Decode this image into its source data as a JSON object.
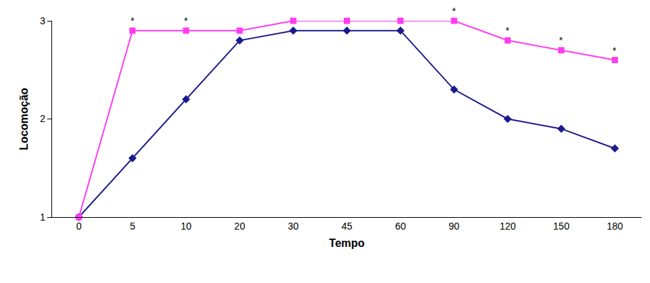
{
  "chart_data": {
    "type": "line",
    "x_label": "Tempo",
    "y_label": "Locomoção",
    "categories": [
      "0",
      "5",
      "10",
      "20",
      "30",
      "45",
      "60",
      "90",
      "120",
      "150",
      "180"
    ],
    "series": [
      {
        "color": "#1a1a8c",
        "marker": "diamond",
        "values": [
          1,
          1.6,
          2.2,
          2.8,
          2.9,
          2.9,
          2.9,
          2.3,
          2.0,
          1.9,
          1.7
        ]
      },
      {
        "color": "#ff3cf0",
        "marker": "square",
        "values": [
          1,
          2.9,
          2.9,
          2.9,
          3.0,
          3.0,
          3.0,
          3.0,
          2.8,
          2.7,
          2.6
        ]
      }
    ],
    "ylim": [
      1,
      3
    ],
    "yticks": [
      1,
      2,
      3
    ],
    "grid": false,
    "annotations": [
      {
        "x": "5",
        "text": "*"
      },
      {
        "x": "10",
        "text": "*"
      },
      {
        "x": "90",
        "text": "*"
      },
      {
        "x": "120",
        "text": "*"
      },
      {
        "x": "150",
        "text": "*"
      },
      {
        "x": "180",
        "text": "*"
      }
    ]
  }
}
